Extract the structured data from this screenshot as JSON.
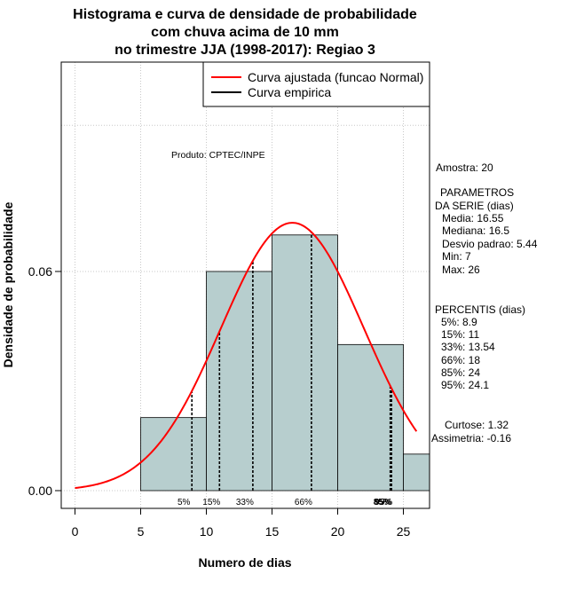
{
  "chart_data": {
    "type": "histogram",
    "title_lines": [
      "Histograma e curva de densidade de probabilidade",
      "com chuva acima de 10 mm",
      "no trimestre JJA (1998-2017): Regiao 3"
    ],
    "xlabel": "Numero de dias",
    "ylabel": "Densidade de probabilidade",
    "xlim": [
      -1,
      27
    ],
    "ylim": [
      -0.005,
      0.12
    ],
    "x_ticks": [
      "0",
      "5",
      "10",
      "15",
      "20",
      "25"
    ],
    "y_ticks": [
      "0.00",
      "0.06"
    ],
    "grid": true,
    "bins": [
      {
        "start": 5,
        "end": 10,
        "density": 0.02
      },
      {
        "start": 10,
        "end": 15,
        "density": 0.06
      },
      {
        "start": 15,
        "end": 20,
        "density": 0.07
      },
      {
        "start": 20,
        "end": 25,
        "density": 0.04
      },
      {
        "start": 25,
        "end": 27,
        "density": 0.01
      }
    ],
    "bar_color": "#b7cece",
    "normal_fit": {
      "mean": 16.55,
      "sd": 5.44,
      "x_from": 0,
      "x_to": 26,
      "color": "#ff0000"
    },
    "percentile_lines": [
      {
        "label": "5%",
        "value": 8.9
      },
      {
        "label": "15%",
        "value": 11
      },
      {
        "label": "33%",
        "value": 13.54
      },
      {
        "label": "66%",
        "value": 18
      },
      {
        "label": "85%",
        "value": 24
      },
      {
        "label": "95%",
        "value": 24.1
      }
    ],
    "legend": {
      "placement": "top-right",
      "entries": [
        {
          "label": "Curva ajustada (funcao Normal)",
          "color": "#ff0000"
        },
        {
          "label": "Curva empirica",
          "color": "#000000"
        }
      ]
    },
    "producer_note": "Produto: CPTEC/INPE",
    "stats": {
      "amostra": "Amostra: 20",
      "param_title_1": "PARAMETROS",
      "param_title_2": "DA SERIE (dias)",
      "media": "Media: 16.55",
      "mediana": "Mediana: 16.5",
      "desvio": "Desvio padrao: 5.44",
      "min": "Min: 7",
      "max": "Max: 26",
      "perc_title": "PERCENTIS (dias)",
      "p5": "5%: 8.9",
      "p15": "15%: 11",
      "p33": "33%: 13.54",
      "p66": "66%: 18",
      "p85": "85%: 24",
      "p95": "95%: 24.1",
      "curtose": "Curtose: 1.32",
      "assimetria": "Assimetria: -0.16"
    }
  }
}
